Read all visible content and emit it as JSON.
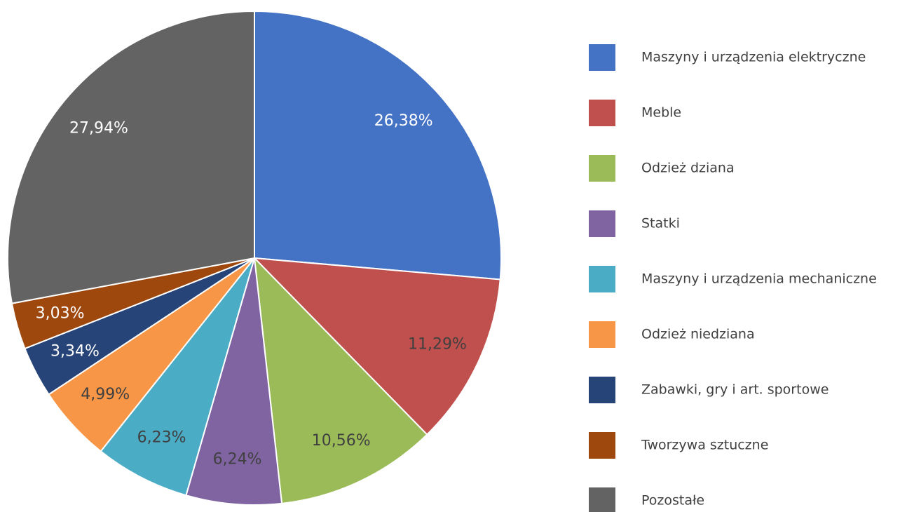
{
  "chart_data": {
    "type": "pie",
    "categories": [
      "Maszyny i urządzenia elektryczne",
      "Meble",
      "Odzież dziana",
      "Statki",
      "Maszyny i urządzenia mechaniczne",
      "Odzież niedziana",
      "Zabawki, gry i art. sportowe",
      "Tworzywa sztuczne",
      "Pozostałe"
    ],
    "values": [
      26.38,
      11.29,
      10.56,
      6.24,
      6.23,
      4.99,
      3.34,
      3.03,
      27.94
    ],
    "value_labels": [
      "26,38%",
      "11,29%",
      "10,56%",
      "6,24%",
      "6,23%",
      "4,99%",
      "3,34%",
      "3,03%",
      "27,94%"
    ],
    "colors": [
      "#4472c4",
      "#c0504d",
      "#9bbb59",
      "#8064a2",
      "#4bacc6",
      "#f79646",
      "#264478",
      "#9e480e",
      "#636363"
    ],
    "label_colors": [
      "#ffffff",
      "#404040",
      "#404040",
      "#404040",
      "#404040",
      "#404040",
      "#ffffff",
      "#ffffff",
      "#ffffff"
    ],
    "legend": "right"
  }
}
